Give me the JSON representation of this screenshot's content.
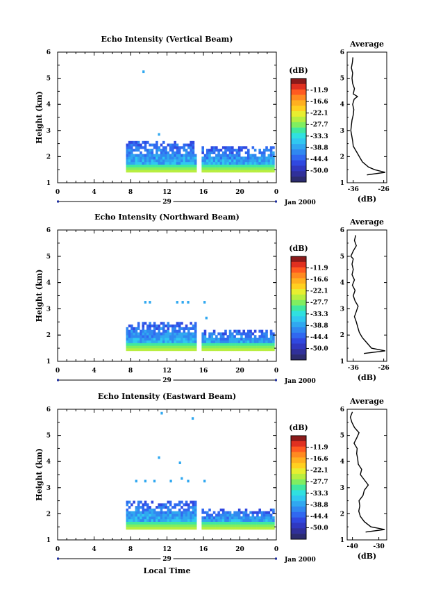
{
  "footer": {
    "xlabel": "Local Time"
  },
  "colorbar": {
    "unit_label": "(dB)",
    "tick_labels": [
      "-11.9",
      "-16.6",
      "-22.1",
      "-27.7",
      "-33.3",
      "-38.8",
      "-44.4",
      "-50.0"
    ],
    "colors": [
      "#8b1a1a",
      "#e03020",
      "#ff5a20",
      "#ff8a20",
      "#ffb020",
      "#ffd020",
      "#e8ee30",
      "#b8ee40",
      "#80ee60",
      "#40e8a0",
      "#30e0e0",
      "#30c8f0",
      "#30a8f0",
      "#3088f0",
      "#3068f0",
      "#3048e0",
      "#3038c0",
      "#30309a",
      "#2c2c70"
    ]
  },
  "chart_data": [
    {
      "type": "heatmap",
      "title": "Echo Intensity (Vertical Beam)",
      "ylabel": "Height (km)",
      "xlim": [
        0,
        24
      ],
      "ylim": [
        1,
        6
      ],
      "x_ticks": [
        "0",
        "4",
        "8",
        "12",
        "16",
        "20",
        "0"
      ],
      "y_ticks": [
        "1",
        "2",
        "3",
        "4",
        "5",
        "6"
      ],
      "date_day": "29",
      "date_month_year": "Jan 2000",
      "segments": [
        {
          "x0": 7.5,
          "x1": 15.2,
          "y_base": 1.4,
          "y_top": 2.6
        },
        {
          "x0": 15.8,
          "x1": 23.8,
          "y_base": 1.4,
          "y_top": 2.4
        }
      ],
      "isolated": [
        {
          "x": 9.3,
          "y": 5.2
        },
        {
          "x": 11.0,
          "y": 2.8
        }
      ],
      "profile": {
        "title": "Average",
        "xlabel": "(dB)",
        "x_ticks": [
          "-36",
          "-26"
        ],
        "xlim": [
          -38,
          -25
        ],
        "heights": [
          1.3,
          1.4,
          1.5,
          1.6,
          1.8,
          2.0,
          2.2,
          2.4,
          2.6,
          2.8,
          3.0,
          3.2,
          3.4,
          3.6,
          3.8,
          4.0,
          4.2,
          4.3,
          4.4,
          4.6,
          4.8,
          5.0,
          5.2,
          5.4,
          5.6,
          5.8
        ],
        "values": [
          -31.5,
          -25.5,
          -29.0,
          -31.0,
          -33.0,
          -34.0,
          -35.0,
          -36.0,
          -36.2,
          -36.5,
          -36.8,
          -36.6,
          -36.4,
          -36.0,
          -35.8,
          -36.2,
          -35.7,
          -34.6,
          -36.0,
          -35.6,
          -36.2,
          -36.4,
          -36.2,
          -36.6,
          -36.3,
          -36.1
        ]
      }
    },
    {
      "type": "heatmap",
      "title": "Echo Intensity (Northward Beam)",
      "ylabel": "Height (km)",
      "xlim": [
        0,
        24
      ],
      "ylim": [
        1,
        6
      ],
      "x_ticks": [
        "0",
        "4",
        "8",
        "12",
        "16",
        "20",
        "0"
      ],
      "y_ticks": [
        "1",
        "2",
        "3",
        "4",
        "5",
        "6"
      ],
      "date_day": "29",
      "date_month_year": "Jan 2000",
      "segments": [
        {
          "x0": 7.5,
          "x1": 15.2,
          "y_base": 1.4,
          "y_top": 2.5
        },
        {
          "x0": 15.8,
          "x1": 23.8,
          "y_base": 1.4,
          "y_top": 2.2
        }
      ],
      "isolated": [
        {
          "x": 9.5,
          "y": 3.2
        },
        {
          "x": 10.0,
          "y": 3.2
        },
        {
          "x": 13.0,
          "y": 3.2
        },
        {
          "x": 13.6,
          "y": 3.2
        },
        {
          "x": 14.2,
          "y": 3.2
        },
        {
          "x": 16.0,
          "y": 3.2
        },
        {
          "x": 16.2,
          "y": 2.6
        }
      ],
      "profile": {
        "title": "Average",
        "xlabel": "(dB)",
        "x_ticks": [
          "-36",
          "-26"
        ],
        "xlim": [
          -38,
          -25
        ],
        "heights": [
          1.3,
          1.4,
          1.5,
          1.7,
          1.9,
          2.1,
          2.3,
          2.5,
          2.7,
          2.9,
          3.1,
          3.3,
          3.5,
          3.7,
          3.9,
          4.1,
          4.3,
          4.5,
          4.7,
          4.9,
          5.0,
          5.2,
          5.4,
          5.6,
          5.8
        ],
        "values": [
          -32.5,
          -25.5,
          -30.0,
          -31.5,
          -33.0,
          -34.0,
          -34.5,
          -35.0,
          -35.6,
          -35.0,
          -34.4,
          -35.4,
          -36.0,
          -35.4,
          -36.3,
          -35.6,
          -36.4,
          -36.0,
          -36.4,
          -36.0,
          -36.8,
          -36.0,
          -35.0,
          -35.6,
          -35.2
        ]
      }
    },
    {
      "type": "heatmap",
      "title": "Echo Intensity (Eastward Beam)",
      "ylabel": "Height (km)",
      "xlim": [
        0,
        24
      ],
      "ylim": [
        1,
        6
      ],
      "x_ticks": [
        "0",
        "4",
        "8",
        "12",
        "16",
        "20",
        "0"
      ],
      "y_ticks": [
        "1",
        "2",
        "3",
        "4",
        "5",
        "6"
      ],
      "date_day": "29",
      "date_month_year": "Jan 2000",
      "segments": [
        {
          "x0": 7.5,
          "x1": 15.2,
          "y_base": 1.4,
          "y_top": 2.5
        },
        {
          "x0": 15.8,
          "x1": 23.8,
          "y_base": 1.4,
          "y_top": 2.2
        }
      ],
      "isolated": [
        {
          "x": 11.3,
          "y": 5.8
        },
        {
          "x": 14.7,
          "y": 5.6
        },
        {
          "x": 11.0,
          "y": 4.1
        },
        {
          "x": 13.3,
          "y": 3.9
        },
        {
          "x": 8.5,
          "y": 3.2
        },
        {
          "x": 9.5,
          "y": 3.2
        },
        {
          "x": 10.5,
          "y": 3.2
        },
        {
          "x": 12.3,
          "y": 3.2
        },
        {
          "x": 13.5,
          "y": 3.3
        },
        {
          "x": 14.2,
          "y": 3.2
        },
        {
          "x": 16.0,
          "y": 3.2
        }
      ],
      "profile": {
        "title": "Average",
        "xlabel": "(dB)",
        "x_ticks": [
          "-40",
          "-30"
        ],
        "xlim": [
          -42,
          -27
        ],
        "heights": [
          1.3,
          1.4,
          1.5,
          1.7,
          1.9,
          2.1,
          2.3,
          2.5,
          2.7,
          2.9,
          3.1,
          3.3,
          3.5,
          3.7,
          3.9,
          4.1,
          4.3,
          4.5,
          4.7,
          4.9,
          5.1,
          5.3,
          5.5,
          5.7,
          5.9
        ],
        "values": [
          -35.0,
          -27.8,
          -33.0,
          -35.5,
          -37.0,
          -37.6,
          -37.2,
          -37.5,
          -36.0,
          -35.5,
          -34.0,
          -35.5,
          -37.0,
          -36.5,
          -37.8,
          -38.0,
          -38.4,
          -38.2,
          -39.4,
          -38.4,
          -37.5,
          -39.2,
          -40.2,
          -40.8,
          -40.0
        ]
      }
    }
  ]
}
